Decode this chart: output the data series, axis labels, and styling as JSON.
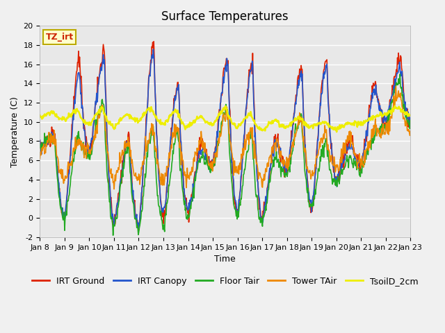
{
  "title": "Surface Temperatures",
  "xlabel": "Time",
  "ylabel": "Temperature (C)",
  "ylim": [
    -2,
    20
  ],
  "fig_bg_color": "#f0f0f0",
  "plot_bg_color": "#e8e8e8",
  "annotation_text": "TZ_irt",
  "annotation_box_color": "#ffffcc",
  "annotation_border_color": "#bbaa00",
  "annotation_text_color": "#cc2200",
  "legend_entries": [
    "IRT Ground",
    "IRT Canopy",
    "Floor Tair",
    "Tower TAir",
    "TsoilD_2cm"
  ],
  "line_colors": [
    "#dd2200",
    "#2255cc",
    "#22aa22",
    "#ee8800",
    "#eeee00"
  ],
  "line_widths": [
    1.2,
    1.2,
    1.2,
    1.2,
    1.8
  ],
  "x_tick_labels": [
    "Jan 8",
    "Jan 9",
    "Jan 10",
    "Jan 11",
    "Jan 12",
    "Jan 13",
    "Jan 14",
    "Jan 15",
    "Jan 16",
    "Jan 17",
    "Jan 18",
    "Jan 19",
    "Jan 20",
    "Jan 21",
    "Jan 22",
    "Jan 23"
  ],
  "y_ticks": [
    -2,
    0,
    2,
    4,
    6,
    8,
    10,
    12,
    14,
    16,
    18,
    20
  ],
  "title_fontsize": 12,
  "label_fontsize": 9,
  "tick_fontsize": 8,
  "legend_fontsize": 9,
  "grid_colors": [
    "#d8d8d8",
    "#e8e8e8"
  ]
}
